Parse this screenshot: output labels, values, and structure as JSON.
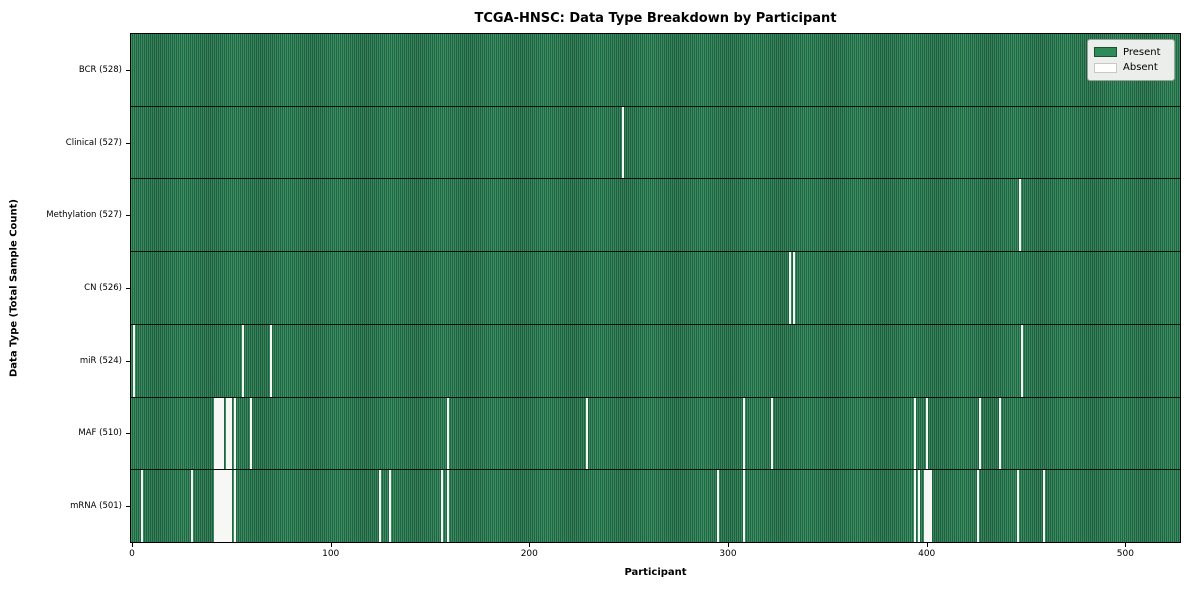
{
  "chart_data": {
    "type": "heatmap",
    "title": "TCGA-HNSC: Data Type Breakdown by Participant",
    "xlabel": "Participant",
    "ylabel": "Data Type (Total Sample Count)",
    "x_ticks": [
      0,
      100,
      200,
      300,
      400,
      500
    ],
    "x_range": [
      0,
      528
    ],
    "n_participants": 528,
    "colors": {
      "present": "#2e8b57",
      "present_stripe_dark": "#26644a",
      "absent": "#ffffff",
      "legend_bg": "#ebeeea",
      "legend_border": "#9aa09a"
    },
    "legend": [
      {
        "label": "Present",
        "color": "#2e8b57",
        "border": "#1d4f33"
      },
      {
        "label": "Absent",
        "color": "#ffffff",
        "border": "#c8c8c8"
      }
    ],
    "legend_position": "upper right",
    "grid": false,
    "rows": [
      {
        "label": "BCR (528)",
        "total": 528,
        "absent": []
      },
      {
        "label": "Clinical (527)",
        "total": 527,
        "absent": [
          247
        ]
      },
      {
        "label": "Methylation (527)",
        "total": 527,
        "absent": [
          447
        ]
      },
      {
        "label": "CN (526)",
        "total": 526,
        "absent": [
          331,
          333
        ]
      },
      {
        "label": "miR (524)",
        "total": 524,
        "absent": [
          1,
          56,
          70,
          448
        ]
      },
      {
        "label": "MAF (510)",
        "total": 510,
        "absent": [
          42,
          43,
          44,
          45,
          46,
          48,
          49,
          50,
          52,
          60,
          159,
          229,
          308,
          322,
          394,
          400,
          427,
          437
        ]
      },
      {
        "label": "mRNA (501)",
        "total": 501,
        "absent": [
          5,
          30,
          42,
          43,
          44,
          45,
          46,
          47,
          48,
          49,
          50,
          52,
          125,
          130,
          156,
          159,
          295,
          308,
          394,
          396,
          399,
          400,
          401,
          402,
          426,
          446,
          459
        ]
      }
    ]
  }
}
